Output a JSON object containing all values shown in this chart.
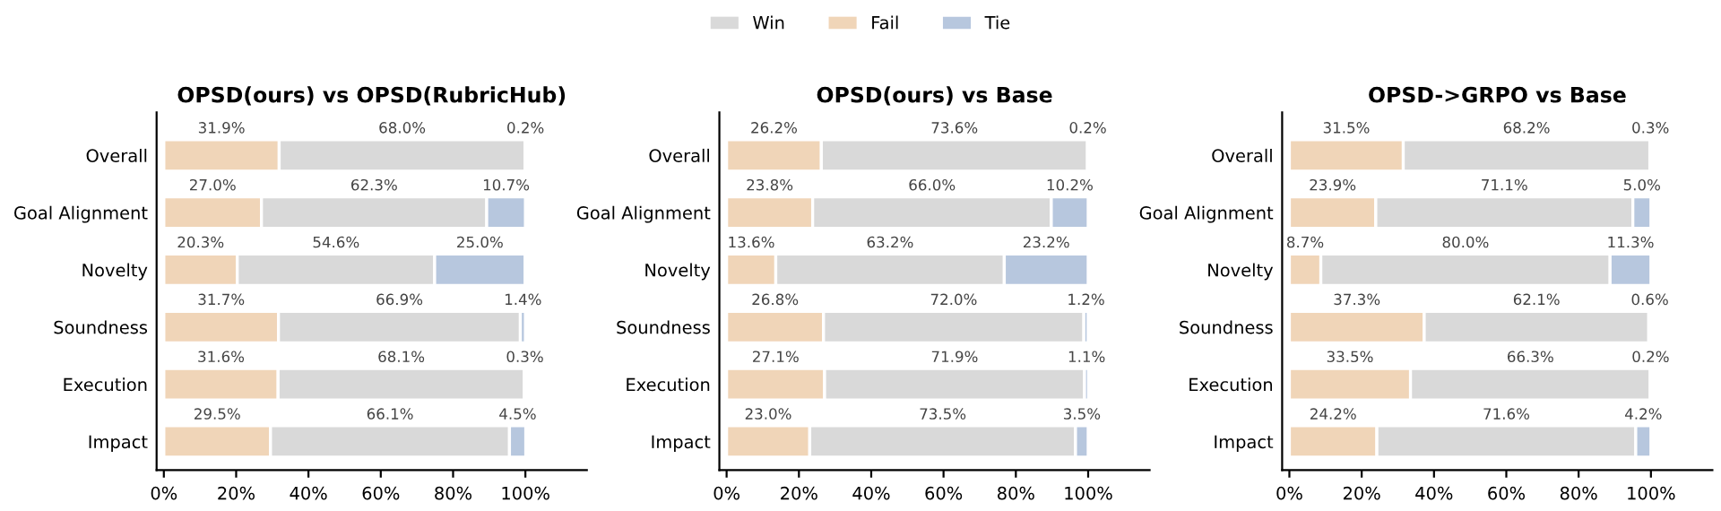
{
  "chart_data": [
    {
      "type": "bar",
      "orientation": "horizontal",
      "stacked": true,
      "title": "OPSD(ours) vs OPSD(RubricHub)",
      "legend": "top",
      "categories": [
        "Overall",
        "Goal Alignment",
        "Novelty",
        "Soundness",
        "Execution",
        "Impact"
      ],
      "xlim": [
        -2,
        117
      ],
      "xticks": [
        {
          "value": 0,
          "label": "0%"
        },
        {
          "value": 20,
          "label": "20%"
        },
        {
          "value": 40,
          "label": "40%"
        },
        {
          "value": 60,
          "label": "60%"
        },
        {
          "value": 80,
          "label": "80%"
        },
        {
          "value": 100,
          "label": "100%"
        }
      ],
      "series": [
        {
          "name": "Fail",
          "color": "#f0d5b8",
          "values": [
            31.9,
            27.0,
            20.3,
            31.7,
            31.6,
            29.5
          ],
          "value_labels": [
            "31.9%",
            "27.0%",
            "20.3%",
            "31.7%",
            "31.6%",
            "29.5%"
          ]
        },
        {
          "name": "Win",
          "color": "#d9d9d9",
          "values": [
            68.0,
            62.3,
            54.6,
            66.9,
            68.1,
            66.1
          ],
          "value_labels": [
            "68.0%",
            "62.3%",
            "54.6%",
            "66.9%",
            "68.1%",
            "66.1%"
          ]
        },
        {
          "name": "Tie",
          "color": "#b7c7de",
          "values": [
            0.2,
            10.7,
            25.0,
            1.4,
            0.3,
            4.5
          ],
          "value_labels": [
            "0.2%",
            "10.7%",
            "25.0%",
            "1.4%",
            "0.3%",
            "4.5%"
          ]
        }
      ]
    },
    {
      "type": "bar",
      "orientation": "horizontal",
      "stacked": true,
      "title": "OPSD(ours) vs Base",
      "categories": [
        "Overall",
        "Goal Alignment",
        "Novelty",
        "Soundness",
        "Execution",
        "Impact"
      ],
      "xlim": [
        -2,
        117
      ],
      "xticks": [
        {
          "value": 0,
          "label": "0%"
        },
        {
          "value": 20,
          "label": "20%"
        },
        {
          "value": 40,
          "label": "40%"
        },
        {
          "value": 60,
          "label": "60%"
        },
        {
          "value": 80,
          "label": "80%"
        },
        {
          "value": 100,
          "label": "100%"
        }
      ],
      "series": [
        {
          "color": "#f0d5b8",
          "values": [
            26.2,
            23.8,
            13.6,
            26.8,
            27.1,
            23.0
          ],
          "value_labels": [
            "26.2%",
            "23.8%",
            "13.6%",
            "26.8%",
            "27.1%",
            "23.0%"
          ]
        },
        {
          "color": "#d9d9d9",
          "values": [
            73.6,
            66.0,
            63.2,
            72.0,
            71.9,
            73.5
          ],
          "value_labels": [
            "73.6%",
            "66.0%",
            "63.2%",
            "72.0%",
            "71.9%",
            "73.5%"
          ]
        },
        {
          "color": "#b7c7de",
          "values": [
            0.2,
            10.2,
            23.2,
            1.2,
            1.1,
            3.5
          ],
          "value_labels": [
            "0.2%",
            "10.2%",
            "23.2%",
            "1.2%",
            "1.1%",
            "3.5%"
          ]
        }
      ]
    },
    {
      "type": "bar",
      "orientation": "horizontal",
      "stacked": true,
      "title": "OPSD->GRPO vs Base",
      "categories": [
        "Overall",
        "Goal Alignment",
        "Novelty",
        "Soundness",
        "Execution",
        "Impact"
      ],
      "xlim": [
        -2,
        117
      ],
      "xticks": [
        {
          "value": 0,
          "label": "0%"
        },
        {
          "value": 20,
          "label": "20%"
        },
        {
          "value": 40,
          "label": "40%"
        },
        {
          "value": 60,
          "label": "60%"
        },
        {
          "value": 80,
          "label": "80%"
        },
        {
          "value": 100,
          "label": "100%"
        }
      ],
      "series": [
        {
          "color": "#f0d5b8",
          "values": [
            31.5,
            23.9,
            8.7,
            37.3,
            33.5,
            24.2
          ],
          "value_labels": [
            "31.5%",
            "23.9%",
            "8.7%",
            "37.3%",
            "33.5%",
            "24.2%"
          ]
        },
        {
          "color": "#d9d9d9",
          "values": [
            68.2,
            71.1,
            80.0,
            62.1,
            66.3,
            71.6
          ],
          "value_labels": [
            "68.2%",
            "71.1%",
            "80.0%",
            "62.1%",
            "66.3%",
            "71.6%"
          ]
        },
        {
          "color": "#b7c7de",
          "values": [
            0.3,
            5.0,
            11.3,
            0.6,
            0.2,
            4.2
          ],
          "value_labels": [
            "0.3%",
            "5.0%",
            "11.3%",
            "0.6%",
            "0.2%",
            "4.2%"
          ]
        }
      ]
    }
  ]
}
